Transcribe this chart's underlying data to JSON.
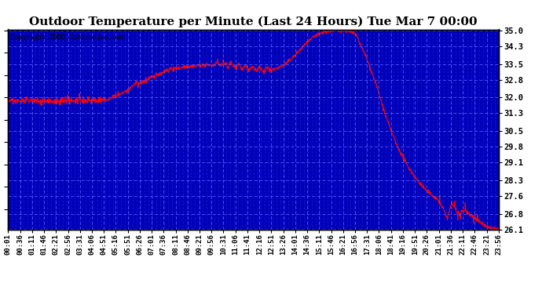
{
  "title": "Outdoor Temperature per Minute (Last 24 Hours) Tue Mar 7 00:00",
  "copyright": "Copyright 2006 Curtronics.com",
  "ytick_values": [
    35.0,
    34.3,
    33.5,
    32.8,
    32.0,
    31.3,
    30.5,
    29.8,
    29.1,
    28.3,
    27.6,
    26.8,
    26.1
  ],
  "ytick_labels": [
    "35.0",
    "34.3",
    "33.5",
    "32.8",
    "32.0",
    "31.3",
    "30.5",
    "29.8",
    "29.1",
    "28.3",
    "27.6",
    "26.8",
    "26.1"
  ],
  "ymin": 26.1,
  "ymax": 35.0,
  "xtick_labels": [
    "00:01",
    "00:36",
    "01:11",
    "01:46",
    "02:21",
    "02:56",
    "03:31",
    "04:06",
    "04:51",
    "05:16",
    "05:51",
    "06:26",
    "07:01",
    "07:36",
    "08:11",
    "08:46",
    "09:21",
    "09:56",
    "10:31",
    "11:06",
    "11:41",
    "12:16",
    "12:51",
    "13:26",
    "14:01",
    "14:36",
    "15:11",
    "15:46",
    "16:21",
    "16:56",
    "17:31",
    "18:06",
    "18:41",
    "19:16",
    "19:51",
    "20:26",
    "21:01",
    "21:36",
    "22:11",
    "22:46",
    "23:21",
    "23:56"
  ],
  "bg_color": "#0000BB",
  "line_color": "#FF0000",
  "grid_color": "#3333DD",
  "outer_bg": "#FFFFFF",
  "title_fontsize": 11,
  "copyright_fontsize": 6,
  "tick_fontsize": 6.5,
  "ytick_fontsize": 7.5
}
